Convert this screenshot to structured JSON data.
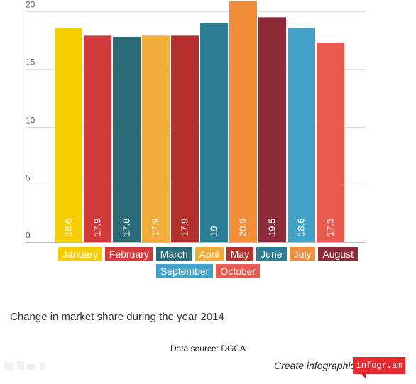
{
  "chart_data": {
    "type": "bar",
    "categories": [
      "January",
      "February",
      "March",
      "April",
      "May",
      "June",
      "July",
      "August",
      "September",
      "October"
    ],
    "values": [
      18.6,
      17.9,
      17.8,
      17.9,
      17.9,
      19,
      20.9,
      19.5,
      18.6,
      17.3
    ],
    "value_labels": [
      "18.6",
      "17.9",
      "17.8",
      "17.9",
      "17.9",
      "19",
      "20.9",
      "19.5",
      "18.6",
      "17.3"
    ],
    "colors": [
      "#f6cd00",
      "#d13b3b",
      "#2a6b77",
      "#f1ad3a",
      "#b5302a",
      "#2e7d97",
      "#f28d3a",
      "#8b2a38",
      "#44a2c9",
      "#e95a50"
    ],
    "y_ticks": [
      0,
      5,
      10,
      15,
      20
    ],
    "ylim": [
      0,
      21
    ],
    "grid": true,
    "legend_position": "bottom",
    "legend": [
      "January",
      "February",
      "March",
      "April",
      "May",
      "June",
      "July",
      "August",
      "September",
      "October"
    ]
  },
  "caption": "Change in market share during the year 2014",
  "source": "Data source: DGCA",
  "footer": {
    "create": "Create infographics",
    "brand": "infogr.am"
  }
}
